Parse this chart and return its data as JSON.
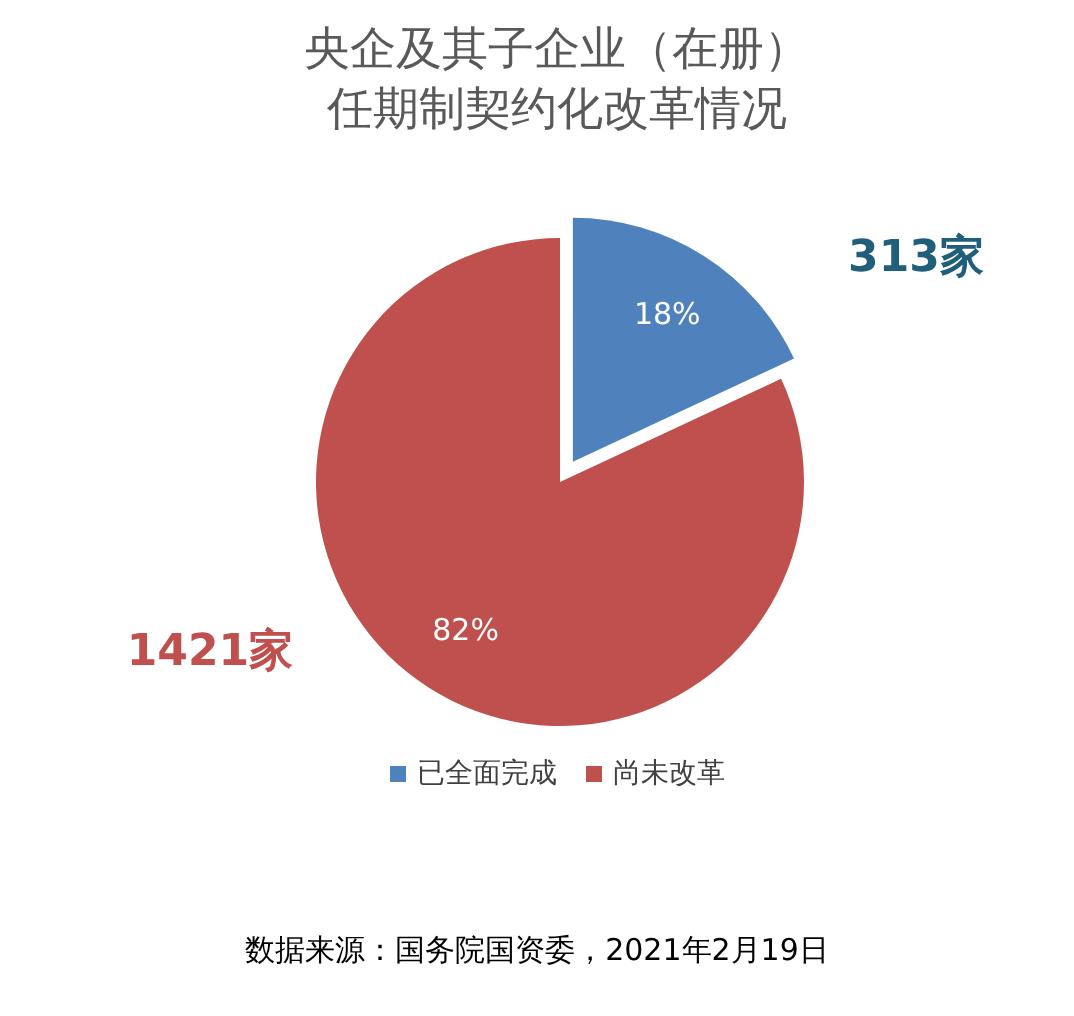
{
  "chart_data": {
    "type": "pie",
    "title": "央企及其子企业（在册）",
    "subtitle": "任期制契约化改革情况",
    "categories": [
      "已全面完成",
      "尚未改革"
    ],
    "values": [
      313,
      1421
    ],
    "colors": [
      "#4f81bd",
      "#c0504d"
    ],
    "value_labels": [
      "313家",
      "1421家"
    ],
    "annotations": [
      {
        "text": "18%",
        "x": "已全面完成"
      },
      {
        "text": "82%",
        "x": "尚未改革"
      },
      "数据来源：国务院国资委，2021年2月19日"
    ],
    "legend": "bottom"
  }
}
